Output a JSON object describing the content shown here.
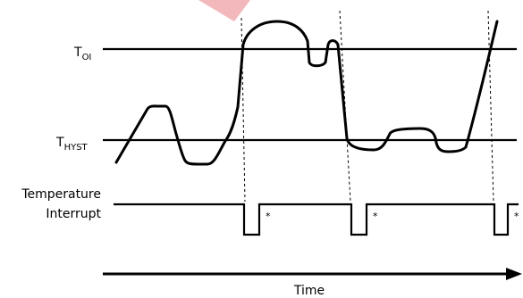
{
  "labels": {
    "toi_main": "T",
    "toi_sub": "OI",
    "thyst_main": "T",
    "thyst_sub": "HYST",
    "interrupt_line1": "Temperature",
    "interrupt_line2": "Interrupt",
    "time": "Time",
    "asterisk": "*"
  },
  "colors": {
    "ink": "#000000",
    "background": "#ffffff",
    "watermark": "#f2b8bc"
  }
}
